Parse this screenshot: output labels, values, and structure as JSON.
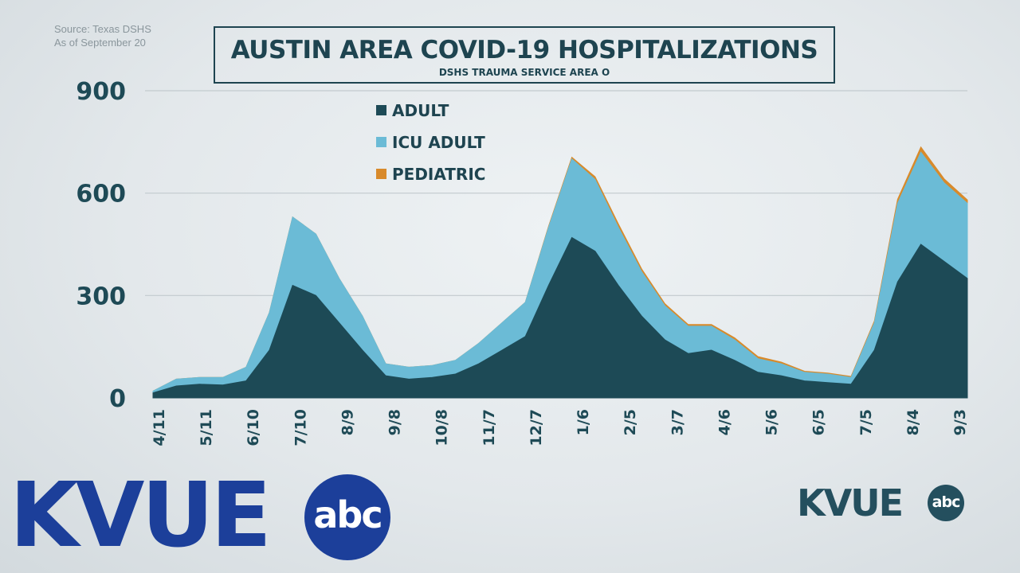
{
  "source_note": {
    "line1": "Source: Texas DSHS",
    "line2": "As of September 20"
  },
  "logos": {
    "main": {
      "text": "KVUE",
      "network": "abc"
    },
    "corner": {
      "text": "KVUE",
      "network": "abc"
    }
  },
  "colors": {
    "adult": "#1d4a56",
    "icu_adult": "#6bbbd6",
    "pediatric": "#d88a2b",
    "axis_text": "#1e4a56",
    "brand_blue": "#1c3f9a"
  },
  "chart_data": {
    "type": "area",
    "stacked": true,
    "title": "AUSTIN AREA COVID-19 HOSPITALIZATIONS",
    "subtitle": "DSHS TRAUMA SERVICE AREA O",
    "ylim": [
      0,
      900
    ],
    "yticks": [
      0,
      300,
      600,
      900
    ],
    "grid": true,
    "legend_position": "top-center",
    "x_tick_labels": [
      "4/11",
      "5/11",
      "6/10",
      "7/10",
      "8/9",
      "9/8",
      "10/8",
      "11/7",
      "12/7",
      "1/6",
      "2/5",
      "3/7",
      "4/6",
      "5/6",
      "6/5",
      "7/5",
      "8/4",
      "9/3"
    ],
    "x": [
      "4/11",
      "4/26",
      "5/11",
      "5/26",
      "6/10",
      "6/25",
      "7/10",
      "7/25",
      "8/9",
      "8/24",
      "9/8",
      "9/23",
      "10/8",
      "10/23",
      "11/7",
      "11/22",
      "12/7",
      "12/22",
      "1/6",
      "1/21",
      "2/5",
      "2/20",
      "3/7",
      "3/22",
      "4/6",
      "4/21",
      "5/6",
      "5/21",
      "6/5",
      "6/20",
      "7/5",
      "7/20",
      "8/4",
      "8/19",
      "9/3",
      "9/20"
    ],
    "series": [
      {
        "name": "ADULT",
        "values": [
          15,
          35,
          40,
          38,
          50,
          140,
          330,
          300,
          220,
          140,
          65,
          55,
          60,
          70,
          100,
          140,
          180,
          330,
          470,
          430,
          330,
          240,
          170,
          130,
          140,
          110,
          75,
          65,
          50,
          45,
          40,
          140,
          340,
          450,
          400,
          350
        ]
      },
      {
        "name": "ICU ADULT",
        "values": [
          5,
          20,
          20,
          22,
          40,
          110,
          200,
          180,
          130,
          100,
          35,
          35,
          35,
          40,
          60,
          80,
          100,
          170,
          230,
          210,
          170,
          130,
          100,
          80,
          70,
          60,
          40,
          35,
          25,
          25,
          20,
          80,
          230,
          270,
          230,
          220
        ]
      },
      {
        "name": "PEDIATRIC",
        "values": [
          0,
          0,
          0,
          0,
          0,
          0,
          0,
          0,
          0,
          0,
          0,
          0,
          0,
          0,
          0,
          0,
          0,
          3,
          5,
          8,
          10,
          8,
          6,
          5,
          5,
          6,
          6,
          5,
          3,
          3,
          3,
          5,
          12,
          15,
          12,
          10
        ]
      }
    ]
  }
}
